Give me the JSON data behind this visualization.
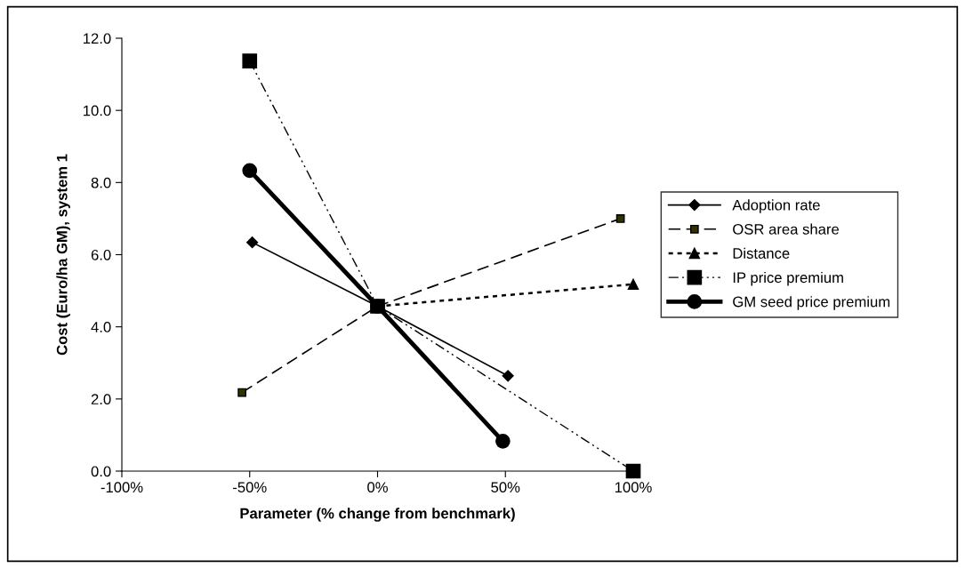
{
  "chart_data": {
    "type": "line",
    "xlabel": "Parameter (% change from benchmark)",
    "ylabel": "Cost (Euro/ha GM), system 1",
    "xlim": [
      -100,
      100
    ],
    "ylim": [
      0,
      12
    ],
    "xticks": [
      {
        "value": -100,
        "label": "-100%"
      },
      {
        "value": -50,
        "label": "-50%"
      },
      {
        "value": 0,
        "label": "0%"
      },
      {
        "value": 50,
        "label": "50%"
      },
      {
        "value": 100,
        "label": "100%"
      }
    ],
    "yticks": [
      {
        "value": 0,
        "label": "0.0"
      },
      {
        "value": 2,
        "label": "2.0"
      },
      {
        "value": 4,
        "label": "4.0"
      },
      {
        "value": 6,
        "label": "6.0"
      },
      {
        "value": 8,
        "label": "8.0"
      },
      {
        "value": 10,
        "label": "10.0"
      },
      {
        "value": 12,
        "label": "12.0"
      }
    ],
    "grid": false,
    "legend": "right",
    "series": [
      {
        "name": "Adoption rate",
        "color": "#000000",
        "x": [
          -49,
          0,
          51
        ],
        "values": [
          6.34,
          4.57,
          2.64
        ],
        "marker": "diamond",
        "line_style": "solid"
      },
      {
        "name": "OSR area share",
        "color": "#000000",
        "x": [
          -53,
          0,
          95
        ],
        "values": [
          2.18,
          4.57,
          7.0
        ],
        "marker": "square",
        "line_style": "dashed"
      },
      {
        "name": "Distance",
        "color": "#000000",
        "x": [
          0,
          100
        ],
        "values": [
          4.57,
          5.18
        ],
        "marker": "triangle",
        "line_style": "dotted"
      },
      {
        "name": "IP price premium",
        "color": "#000000",
        "x": [
          -50,
          0,
          100
        ],
        "values": [
          11.37,
          4.57,
          0.0
        ],
        "marker": "square",
        "line_style": "dashdot"
      },
      {
        "name": "GM seed price premium",
        "color": "#000000",
        "x": [
          -50,
          0,
          49
        ],
        "values": [
          8.33,
          4.57,
          0.83
        ],
        "marker": "circle",
        "line_style": "solid"
      }
    ]
  }
}
